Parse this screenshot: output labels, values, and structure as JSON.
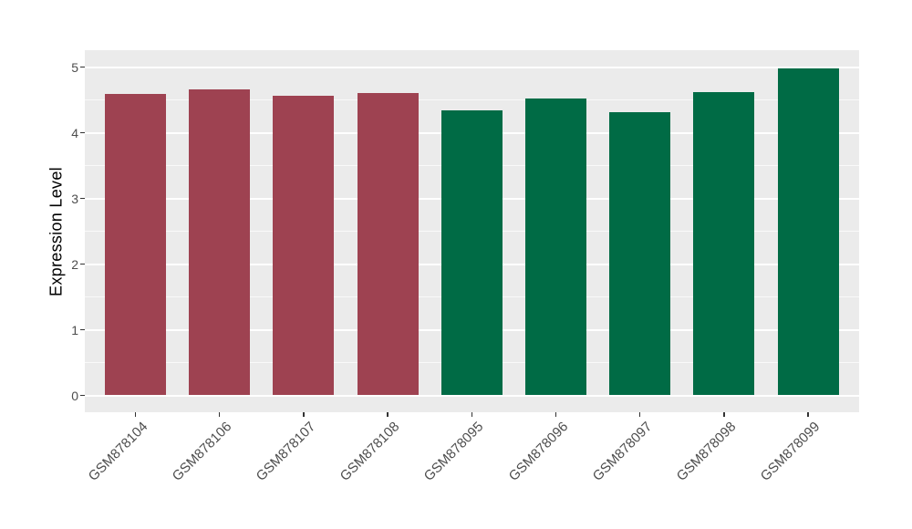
{
  "chart_data": {
    "type": "bar",
    "title": "",
    "xlabel": "",
    "ylabel": "Expression Level",
    "categories": [
      "GSM878104",
      "GSM878106",
      "GSM878107",
      "GSM878108",
      "GSM878095",
      "GSM878096",
      "GSM878097",
      "GSM878098",
      "GSM878099"
    ],
    "values": [
      4.59,
      4.66,
      4.56,
      4.6,
      4.34,
      4.52,
      4.31,
      4.62,
      4.98
    ],
    "bar_colors": [
      "#9E4251",
      "#9E4251",
      "#9E4251",
      "#9E4251",
      "#006B45",
      "#006B45",
      "#006B45",
      "#006B45",
      "#006B45"
    ],
    "ylim": [
      0,
      5
    ],
    "yticks": [
      0,
      1,
      2,
      3,
      4,
      5
    ],
    "yticks_minor": [
      0.5,
      1.5,
      2.5,
      3.5,
      4.5
    ],
    "grid": true,
    "legend": "none",
    "panel_background": "#EBEBEB",
    "grid_color": "#FFFFFF",
    "axis_text_color": "#4D4D4D",
    "axis_title_color": "#000000",
    "tick_mark_color": "#333333"
  }
}
